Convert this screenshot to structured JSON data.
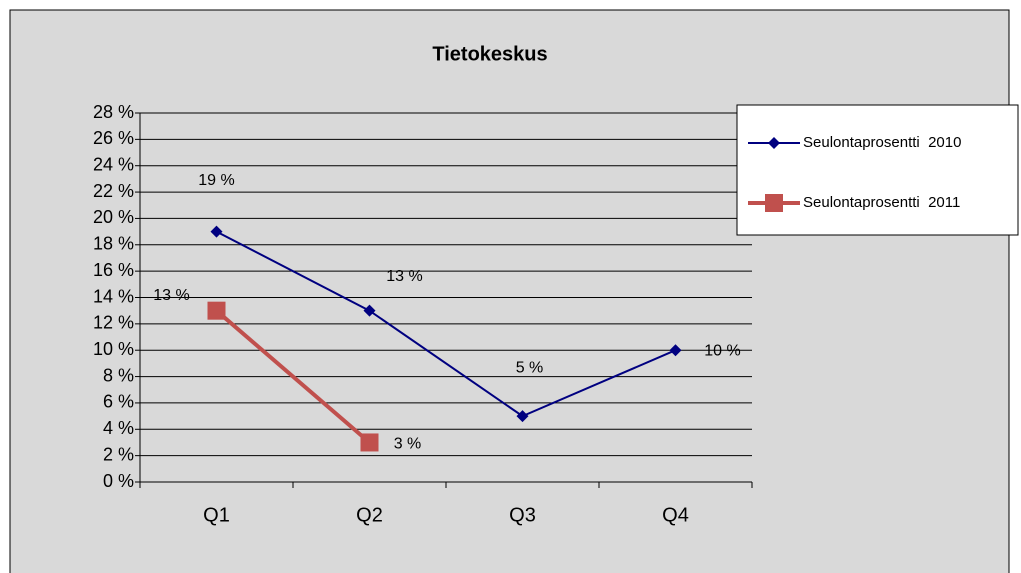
{
  "chart_data": {
    "type": "line",
    "title": "Tietokeskus",
    "categories": [
      "Q1",
      "Q2",
      "Q3",
      "Q4"
    ],
    "series": [
      {
        "name": "Seulontaprosentti  2010",
        "color": "#000080",
        "marker": "diamond",
        "values": [
          19,
          13,
          5,
          10
        ],
        "value_labels": [
          "19 %",
          "13 %",
          "5 %",
          "10 %"
        ]
      },
      {
        "name": "Seulontaprosentti  2011",
        "color": "#c0504d",
        "marker": "square",
        "values": [
          13,
          3,
          null,
          null
        ],
        "value_labels": [
          "13 %",
          "3 %",
          null,
          null
        ]
      }
    ],
    "ylim": [
      0,
      28
    ],
    "yticks": [
      {
        "value": 0,
        "label": "0 %"
      },
      {
        "value": 2,
        "label": "2 %"
      },
      {
        "value": 4,
        "label": "4 %"
      },
      {
        "value": 6,
        "label": "6 %"
      },
      {
        "value": 8,
        "label": "8 %"
      },
      {
        "value": 10,
        "label": "10 %"
      },
      {
        "value": 12,
        "label": "12 %"
      },
      {
        "value": 14,
        "label": "14 %"
      },
      {
        "value": 16,
        "label": "16 %"
      },
      {
        "value": 18,
        "label": "18 %"
      },
      {
        "value": 20,
        "label": "20 %"
      },
      {
        "value": 22,
        "label": "22 %"
      },
      {
        "value": 24,
        "label": "24 %"
      },
      {
        "value": 26,
        "label": "26 %"
      },
      {
        "value": 28,
        "label": "28 %"
      }
    ],
    "grid": true,
    "legend": "right"
  }
}
